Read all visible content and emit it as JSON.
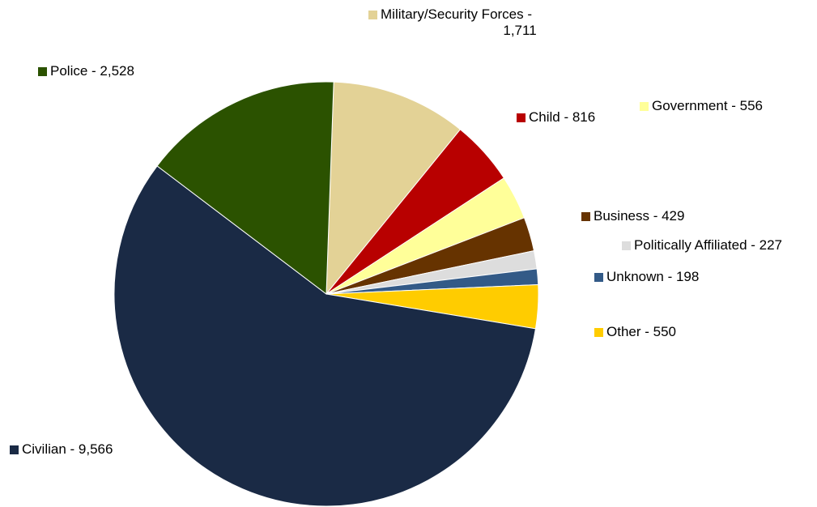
{
  "chart_data": {
    "type": "pie",
    "title": "",
    "start_angle_deg": -88,
    "direction": "clockwise",
    "slices": [
      {
        "label": "Military/Security Forces - 1,711",
        "value": 1711,
        "color": "#E3D296"
      },
      {
        "label": "Child - 816",
        "value": 816,
        "color": "#B80000"
      },
      {
        "label": "Government - 556",
        "value": 556,
        "color": "#FFFF99"
      },
      {
        "label": "Business - 429",
        "value": 429,
        "color": "#663300"
      },
      {
        "label": "Politically Affiliated - 227",
        "value": 227,
        "color": "#DDDDDD"
      },
      {
        "label": "Unknown - 198",
        "value": 198,
        "color": "#335A87"
      },
      {
        "label": "Other - 550",
        "value": 550,
        "color": "#FFCC00"
      },
      {
        "label": "Civilian - 9,566",
        "value": 9566,
        "color": "#1A2A45"
      },
      {
        "label": "Police - 2,528",
        "value": 2528,
        "color": "#2B5200"
      }
    ]
  }
}
